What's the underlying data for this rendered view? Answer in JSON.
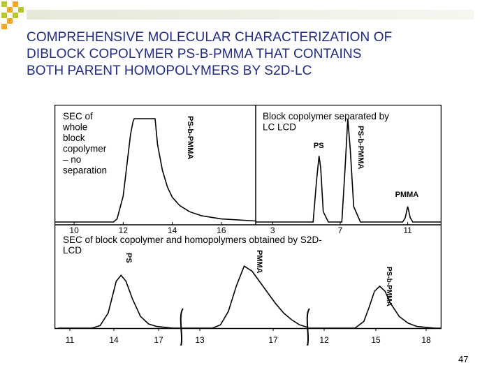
{
  "slide": {
    "title_lines": [
      "COMPREHENSIVE MOLECULAR CHARACTERIZATION OF",
      "DIBLOCK COPOLYMER PS-B-PMMA THAT CONTAINS",
      "BOTH PARENT HOMOPOLYMERS BY S2D-LC"
    ],
    "page_number": "47",
    "title_color": "#1f2a8a",
    "decoration_colors": [
      "#b8c82a",
      "#f5a623"
    ]
  },
  "chart_data": [
    {
      "type": "line",
      "panel": "top-left",
      "title_lines": [
        "SEC of",
        "whole",
        "block",
        "copolymer",
        "– no",
        "separation"
      ],
      "x_ticks": [
        10,
        12,
        14,
        16
      ],
      "xlim": [
        9.2,
        17.4
      ],
      "peak_labels": [
        {
          "text": "PS-b-PMMA",
          "x": 13.3
        }
      ],
      "series": [
        {
          "x": [
            9.2,
            11.6,
            11.75,
            12.0,
            12.3,
            12.4,
            12.45,
            13.3,
            13.4,
            13.6,
            13.8,
            14.0,
            14.3,
            14.7,
            15.2,
            16.0,
            17.4
          ],
          "y": [
            0,
            0,
            3,
            25,
            85,
            97,
            100,
            100,
            75,
            50,
            34,
            24,
            16,
            10,
            6,
            3,
            1
          ]
        }
      ]
    },
    {
      "type": "line",
      "panel": "top-right",
      "title_lines": [
        "Block copolymer separated by",
        "LC LCD"
      ],
      "x_ticks": [
        3,
        7,
        11
      ],
      "xlim": [
        2.0,
        13.0
      ],
      "peak_labels": [
        {
          "text": "PS",
          "x": 5.8
        },
        {
          "text": "PS-b-PMMA",
          "x": 7.5
        },
        {
          "text": "PMMA",
          "x": 11.0
        }
      ],
      "series": [
        {
          "x": [
            2.0,
            5.4,
            5.6,
            5.75,
            5.85,
            6.0,
            6.3,
            7.1,
            7.3,
            7.45,
            7.6,
            7.8,
            8.2,
            10.7,
            10.85,
            11.0,
            11.15,
            11.3,
            13.0
          ],
          "y": [
            0,
            0,
            40,
            64,
            52,
            10,
            0,
            0,
            55,
            100,
            70,
            15,
            0,
            0,
            4,
            15,
            4,
            0,
            0
          ]
        }
      ]
    },
    {
      "type": "line",
      "panel": "bottom",
      "title_lines": [
        "SEC of block copolymer and homopolymers obtained by S2D-",
        "LCD"
      ],
      "x_ticks": [
        "11",
        "14",
        "17",
        "13",
        "17",
        "12",
        "15",
        "18"
      ],
      "peak_labels": [
        {
          "text": "PS",
          "x": 14.2
        },
        {
          "text": "PMMA",
          "x": 15.4
        },
        {
          "text": "PS-b-PMMA",
          "x": 14.9
        }
      ],
      "segments": [
        {
          "x": [
            10.4,
            12.5,
            13.0,
            13.5,
            14.0,
            14.3,
            14.6,
            15.0,
            15.5,
            16.0,
            16.5,
            17.0,
            17.5,
            18.0
          ],
          "y": [
            0,
            0,
            3,
            18,
            56,
            63,
            56,
            35,
            14,
            5,
            2,
            1,
            0,
            0
          ]
        },
        {
          "x": [
            11.0,
            13.0,
            13.5,
            14.0,
            14.5,
            15.0,
            15.5,
            16.0,
            16.5,
            17.0,
            17.5,
            18.0,
            18.5,
            19.0
          ],
          "y": [
            0,
            0,
            4,
            20,
            50,
            74,
            68,
            55,
            42,
            29,
            18,
            10,
            4,
            1
          ]
        },
        {
          "x": [
            10.8,
            13.5,
            14.0,
            14.3,
            14.6,
            14.9,
            15.2,
            15.5,
            16.0,
            16.5,
            17.0,
            17.5,
            18.0,
            18.4
          ],
          "y": [
            0,
            0,
            8,
            25,
            44,
            50,
            44,
            30,
            14,
            6,
            2,
            1,
            0,
            0
          ]
        }
      ]
    }
  ]
}
